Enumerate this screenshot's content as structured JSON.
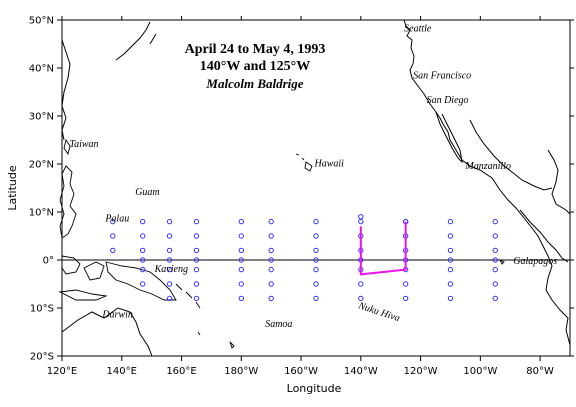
{
  "title": {
    "line1": "April 24 to May 4, 1993",
    "line2": "140°W and 125°W",
    "line3": "Malcolm Baldrige"
  },
  "axes": {
    "xlabel": "Longitude",
    "ylabel": "Latitude",
    "x_ticks": [
      {
        "lon": 120,
        "label": "120°E"
      },
      {
        "lon": 140,
        "label": "140°E"
      },
      {
        "lon": 160,
        "label": "160°E"
      },
      {
        "lon": 180,
        "label": "180°W"
      },
      {
        "lon": 200,
        "label": "160°W"
      },
      {
        "lon": 220,
        "label": "140°W"
      },
      {
        "lon": 240,
        "label": "120°W"
      },
      {
        "lon": 260,
        "label": "100°W"
      },
      {
        "lon": 280,
        "label": "80°W"
      }
    ],
    "y_ticks": [
      {
        "lat": 50,
        "label": "50°N"
      },
      {
        "lat": 40,
        "label": "40°N"
      },
      {
        "lat": 30,
        "label": "30°N"
      },
      {
        "lat": 20,
        "label": "20°N"
      },
      {
        "lat": 10,
        "label": "10°N"
      },
      {
        "lat": 0,
        "label": "0°"
      },
      {
        "lat": -10,
        "label": "10°S"
      },
      {
        "lat": -20,
        "label": "20°S"
      }
    ],
    "lon_range": [
      120,
      290
    ],
    "lat_range": [
      -20,
      50
    ]
  },
  "places": [
    {
      "name": "Seattle",
      "lon": 234.5,
      "lat": 47.6
    },
    {
      "name": "San Francisco",
      "lon": 237.5,
      "lat": 37.8
    },
    {
      "name": "San Diego",
      "lon": 242.0,
      "lat": 32.7
    },
    {
      "name": "Manzanillo",
      "lon": 255.0,
      "lat": 19.0
    },
    {
      "name": "Hawaii",
      "lon": 204.5,
      "lat": 19.5
    },
    {
      "name": "Taiwan",
      "lon": 122.5,
      "lat": 23.5
    },
    {
      "name": "Guam",
      "lon": 144.5,
      "lat": 13.5
    },
    {
      "name": "Palau",
      "lon": 134.5,
      "lat": 8.0
    },
    {
      "name": "Kavieng",
      "lon": 151.0,
      "lat": -2.5
    },
    {
      "name": "Darwin",
      "lon": 133.5,
      "lat": -12.0
    },
    {
      "name": "Samoa",
      "lon": 188.0,
      "lat": -14.0
    },
    {
      "name": "Nuku Hiva",
      "lon": 219.0,
      "lat": -10.0
    },
    {
      "name": "Galapagos",
      "lon": 271.0,
      "lat": -0.8
    }
  ],
  "buoy_array": {
    "longitudes": [
      137,
      147,
      156,
      165,
      180,
      190,
      205,
      220,
      235,
      250,
      265
    ],
    "latitudes": [
      8,
      5,
      2,
      0,
      -2,
      -5,
      -8
    ],
    "extra_points": [
      {
        "lon": 220,
        "lat": 9
      },
      {
        "lon": 235,
        "lat": 8
      }
    ],
    "color": "#3333ff"
  },
  "cruise_track": {
    "color": "#ee11ee",
    "points": [
      {
        "lon": 220,
        "lat": 7
      },
      {
        "lon": 220,
        "lat": -3
      },
      {
        "lon": 235,
        "lat": -2
      },
      {
        "lon": 235,
        "lat": 8
      }
    ]
  }
}
